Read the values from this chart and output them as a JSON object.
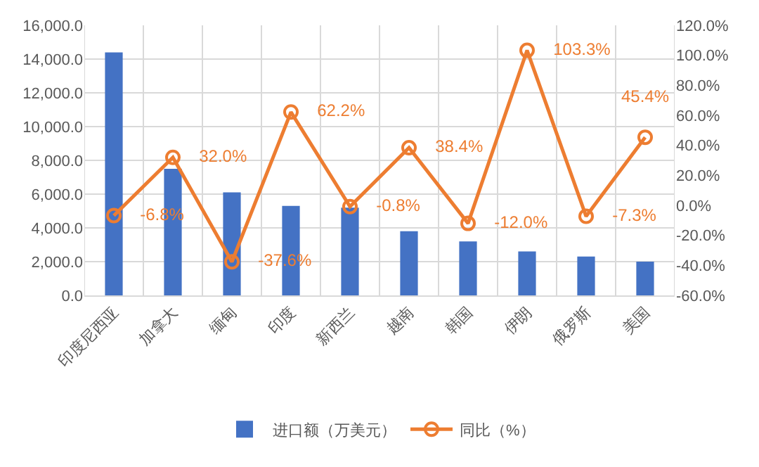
{
  "chart_data": {
    "type": "bar",
    "categories": [
      "印度尼西亚",
      "加拿大",
      "缅甸",
      "印度",
      "新西兰",
      "越南",
      "韩国",
      "伊朗",
      "俄罗斯",
      "美国"
    ],
    "series": [
      {
        "name": "进口额（万美元）",
        "color": "#4472c4",
        "values": [
          14400,
          7500,
          6100,
          5300,
          5200,
          3800,
          3200,
          2600,
          2300,
          2000
        ]
      },
      {
        "name": "同比（%）",
        "type": "line",
        "axis": "y2",
        "color": "#ed7d31",
        "marker": "circle",
        "values": [
          -6.8,
          32.0,
          -37.6,
          62.2,
          -0.8,
          38.4,
          -12.0,
          103.3,
          -7.3,
          45.4
        ],
        "value_labels": [
          "-6.8%",
          "32.0%",
          "-37.6%",
          "62.2%",
          "-0.8%",
          "38.4%",
          "-12.0%",
          "103.3%",
          "-7.3%",
          "45.4%"
        ]
      }
    ],
    "ylim": [
      0,
      16000
    ],
    "yticks": [
      {
        "value": 0,
        "label": "0.0"
      },
      {
        "value": 2000,
        "label": "2,000.0"
      },
      {
        "value": 4000,
        "label": "4,000.0"
      },
      {
        "value": 6000,
        "label": "6,000.0"
      },
      {
        "value": 8000,
        "label": "8,000.0"
      },
      {
        "value": 10000,
        "label": "10,000.0"
      },
      {
        "value": 12000,
        "label": "12,000.0"
      },
      {
        "value": 14000,
        "label": "14,000.0"
      },
      {
        "value": 16000,
        "label": "16,000.0"
      }
    ],
    "y2lim": [
      -60,
      120
    ],
    "y2ticks": [
      {
        "value": -60,
        "label": "-60.0%"
      },
      {
        "value": -40,
        "label": "-40.0%"
      },
      {
        "value": -20,
        "label": "-20.0%"
      },
      {
        "value": 0,
        "label": "0.0%"
      },
      {
        "value": 20,
        "label": "20.0%"
      },
      {
        "value": 40,
        "label": "40.0%"
      },
      {
        "value": 60,
        "label": "60.0%"
      },
      {
        "value": 80,
        "label": "80.0%"
      },
      {
        "value": 100,
        "label": "100.0%"
      },
      {
        "value": 120,
        "label": "120.0%"
      }
    ],
    "grid": true,
    "legend": "bottom"
  }
}
